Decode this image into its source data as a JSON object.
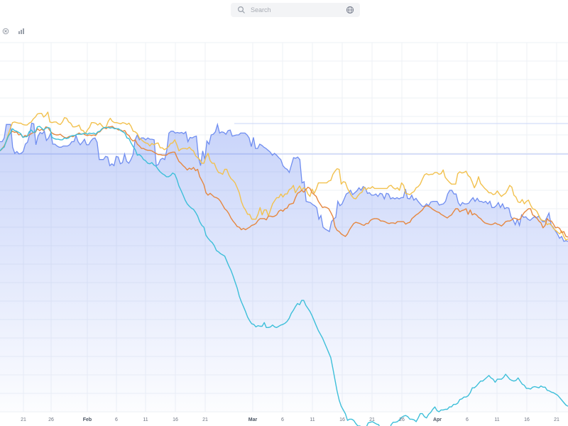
{
  "search": {
    "placeholder": "Search"
  },
  "toolbar": {
    "icons": [
      "close-circle-icon",
      "bar-chart-icon"
    ]
  },
  "colors": {
    "area_fill": "#6f8df0",
    "area_line": "#6f8df0",
    "yellow": "#f2c14e",
    "orange": "#e58740",
    "cyan": "#3dbfd9",
    "grid": "#eef1f6",
    "ref_line": "#b8c6f5"
  },
  "chart_data": {
    "type": "line",
    "x_ticks": [
      "21",
      "26",
      "Feb",
      "6",
      "11",
      "16",
      "21",
      "Mar",
      "6",
      "11",
      "16",
      "21",
      "26",
      "Apr",
      "6",
      "11",
      "16",
      "21"
    ],
    "month_ticks": [
      "Feb",
      "Mar",
      "Apr"
    ],
    "grid": true,
    "series": [
      {
        "name": "",
        "kind": "area",
        "values": [
          161,
          161,
          155,
          133,
          133,
          133,
          170,
          180,
          177,
          181,
          180,
          177,
          165,
          162,
          150,
          131,
          132,
          166,
          152,
          146,
          148,
          144,
          159,
          155,
          147,
          165,
          165,
          168,
          170,
          170,
          168,
          168,
          168,
          166,
          161,
          161,
          151,
          161,
          166,
          162,
          157,
          166,
          166,
          160,
          156,
          155,
          162,
          190,
          190,
          190,
          185,
          186,
          200,
          197,
          200,
          185,
          186,
          197,
          195,
          181,
          193,
          196,
          190,
          182,
          158,
          150,
          158,
          155,
          155,
          158,
          155,
          157,
          157,
          158,
          200,
          198,
          190,
          188,
          190,
          175,
          147,
          144,
          144,
          147,
          146,
          147,
          146,
          148,
          145,
          161,
          154,
          155,
          153,
          152,
          187,
          200,
          176,
          190,
          160,
          165,
          150,
          149,
          145,
          133,
          147,
          145,
          146,
          149,
          143,
          142,
          152,
          151,
          150,
          150,
          147,
          147,
          147,
          150,
          155,
          169,
          154,
          172,
          172,
          165,
          167,
          170,
          172,
          175,
          178,
          183,
          180,
          183,
          187,
          190,
          200,
          204,
          206,
          211,
          199,
          187,
          188,
          186,
          190,
          228,
          226,
          258,
          259,
          260,
          263,
          265,
          268,
          287,
          281,
          300,
          303,
          305,
          307,
          291,
          287,
          284,
          258,
          265,
          262,
          254,
          246,
          244,
          240,
          247,
          244,
          241,
          236,
          240,
          234,
          236,
          245,
          244,
          248,
          248,
          246,
          250,
          245,
          246,
          254,
          245,
          246,
          254,
          252,
          254,
          252,
          254,
          252,
          252,
          238,
          253,
          254,
          248,
          256,
          253,
          258,
          262,
          266,
          266,
          262,
          265,
          259,
          258,
          258,
          258,
          264,
          263,
          262,
          258,
          246,
          240,
          240,
          246,
          246,
          260,
          265,
          260,
          262,
          262,
          261,
          256,
          252,
          258,
          253,
          258,
          258,
          260,
          258,
          262,
          258,
          268,
          268,
          265,
          260,
          268,
          262,
          270,
          268,
          269,
          283,
          288,
          296,
          287,
          297,
          280,
          284,
          283,
          287,
          289,
          286,
          283,
          285,
          282,
          286,
          291,
          291,
          284,
          277,
          296,
          300,
          306,
          311,
          318,
          315,
          323,
          322,
          323
        ]
      },
      {
        "name": "",
        "kind": "line",
        "color": "yellow",
        "values": [
          176,
          172,
          168,
          160,
          149,
          139,
          130,
          129,
          130,
          131,
          131,
          133,
          134,
          134,
          131,
          129,
          124,
          121,
          116,
          115,
          115,
          121,
          118,
          113,
          129,
          130,
          129,
          129,
          132,
          133,
          129,
          122,
          123,
          129,
          131,
          137,
          137,
          136,
          134,
          142,
          143,
          148,
          142,
          138,
          130,
          130,
          131,
          134,
          131,
          135,
          139,
          137,
          128,
          123,
          128,
          130,
          130,
          131,
          132,
          130,
          131,
          133,
          131,
          136,
          144,
          145,
          148,
          155,
          158,
          161,
          163,
          164,
          168,
          164,
          166,
          164,
          163,
          171,
          171,
          174,
          172,
          169,
          164,
          163,
          158,
          166,
          176,
          173,
          172,
          172,
          173,
          170,
          174,
          176,
          184,
          187,
          190,
          196,
          196,
          186,
          180,
          192,
          196,
          196,
          205,
          211,
          212,
          214,
          206,
          206,
          215,
          221,
          224,
          228,
          236,
          244,
          258,
          267,
          272,
          279,
          279,
          287,
          287,
          287,
          279,
          268,
          280,
          272,
          272,
          282,
          272,
          262,
          257,
          252,
          252,
          246,
          251,
          246,
          246,
          239,
          237,
          232,
          244,
          238,
          233,
          240,
          236,
          238,
          246,
          250,
          238,
          245,
          238,
          228,
          228,
          228,
          228,
          228,
          225,
          224,
          214,
          209,
          205,
          206,
          230,
          226,
          227,
          237,
          243,
          249,
          253,
          254,
          249,
          245,
          243,
          235,
          239,
          236,
          237,
          234,
          237,
          237,
          237,
          237,
          237,
          237,
          237,
          233,
          232,
          236,
          238,
          236,
          240,
          228,
          232,
          245,
          246,
          247,
          244,
          242,
          236,
          234,
          230,
          222,
          215,
          213,
          215,
          214,
          214,
          211,
          211,
          214,
          213,
          207,
          219,
          223,
          227,
          230,
          230,
          230,
          213,
          210,
          212,
          211,
          209,
          216,
          219,
          227,
          236,
          229,
          218,
          229,
          233,
          237,
          240,
          244,
          244,
          247,
          246,
          241,
          246,
          250,
          247,
          245,
          239,
          232,
          235,
          248,
          251,
          259,
          260,
          255,
          262,
          258,
          256,
          264,
          270,
          271,
          274,
          281,
          288,
          289,
          290,
          296,
          294,
          297,
          302,
          305,
          308,
          311,
          306,
          315,
          321,
          319
        ]
      },
      {
        "name": "",
        "kind": "line",
        "color": "orange",
        "values": [
          176,
          173,
          168,
          161,
          152,
          147,
          144,
          146,
          145,
          150,
          149,
          154,
          151,
          152,
          150,
          148,
          146,
          146,
          140,
          143,
          141,
          143,
          137,
          138,
          143,
          147,
          149,
          150,
          150,
          149,
          152,
          154,
          155,
          153,
          152,
          153,
          151,
          149,
          147,
          149,
          148,
          150,
          151,
          150,
          151,
          150,
          151,
          146,
          145,
          141,
          138,
          140,
          137,
          137,
          136,
          139,
          140,
          142,
          142,
          144,
          143,
          149,
          151,
          157,
          160,
          158,
          165,
          168,
          172,
          172,
          174,
          175,
          175,
          176,
          178,
          180,
          182,
          182,
          183,
          183,
          183,
          180,
          179,
          178,
          178,
          186,
          193,
          196,
          200,
          203,
          207,
          204,
          206,
          203,
          208,
          206,
          218,
          224,
          231,
          244,
          248,
          245,
          248,
          251,
          252,
          254,
          258,
          264,
          270,
          273,
          278,
          285,
          290,
          294,
          299,
          300,
          304,
          302,
          304,
          302,
          300,
          297,
          296,
          294,
          289,
          286,
          286,
          286,
          288,
          282,
          282,
          283,
          282,
          280,
          274,
          272,
          274,
          270,
          269,
          263,
          262,
          261,
          252,
          245,
          243,
          240,
          243,
          239,
          235,
          237,
          244,
          247,
          250,
          258,
          263,
          268,
          267,
          268,
          270,
          276,
          283,
          299,
          305,
          307,
          311,
          313,
          315,
          311,
          304,
          299,
          294,
          292,
          293,
          294,
          296,
          297,
          294,
          294,
          289,
          287,
          286,
          286,
          287,
          290,
          290,
          291,
          293,
          294,
          293,
          293,
          294,
          291,
          291,
          291,
          291,
          295,
          293,
          292,
          286,
          283,
          280,
          278,
          275,
          272,
          267,
          265,
          266,
          268,
          271,
          273,
          275,
          276,
          279,
          281,
          283,
          285,
          282,
          280,
          275,
          270,
          270,
          275,
          273,
          272,
          270,
          279,
          272,
          280,
          278,
          280,
          284,
          286,
          290,
          293,
          294,
          295,
          296,
          295,
          293,
          295,
          296,
          298,
          295,
          291,
          290,
          290,
          288,
          285,
          286,
          288,
          287,
          281,
          276,
          273,
          270,
          270,
          280,
          282,
          285,
          290,
          293,
          301,
          297,
          286,
          290,
          290,
          295,
          301,
          300,
          302,
          309,
          307,
          315,
          316
        ]
      },
      {
        "name": "",
        "kind": "line",
        "color": "cyan",
        "values": [
          176,
          172,
          170,
          160,
          152,
          147,
          140,
          143,
          144,
          146,
          148,
          154,
          153,
          153,
          145,
          142,
          146,
          145,
          137,
          136,
          139,
          142,
          139,
          138,
          139,
          154,
          156,
          157,
          157,
          158,
          158,
          155,
          156,
          155,
          152,
          151,
          151,
          149,
          149,
          149,
          148,
          147,
          149,
          147,
          148,
          147,
          149,
          145,
          144,
          140,
          138,
          138,
          138,
          139,
          138,
          140,
          140,
          140,
          143,
          145,
          147,
          155,
          156,
          163,
          169,
          174,
          183,
          182,
          185,
          190,
          192,
          196,
          197,
          195,
          199,
          201,
          206,
          210,
          213,
          215,
          218,
          218,
          216,
          212,
          214,
          222,
          233,
          240,
          248,
          256,
          262,
          266,
          269,
          271,
          276,
          282,
          291,
          297,
          300,
          313,
          318,
          322,
          325,
          330,
          338,
          340,
          343,
          345,
          347,
          355,
          363,
          370,
          379,
          389,
          399,
          412,
          421,
          429,
          437,
          446,
          452,
          457,
          458,
          462,
          460,
          461,
          461,
          455,
          463,
          463,
          462,
          459,
          462,
          463,
          461,
          459,
          458,
          456,
          453,
          448,
          440,
          435,
          429,
          424,
          426,
          419,
          419,
          427,
          432,
          437,
          444,
          452,
          460,
          468,
          474,
          480,
          488,
          496,
          504,
          512,
          530,
          548,
          566,
          581,
          591,
          597,
          603,
          614,
          612,
          612,
          614,
          619,
          623,
          623,
          626,
          626,
          625,
          618,
          617,
          616,
          618,
          620,
          621,
          628,
          629,
          629,
          634,
          631,
          621,
          617,
          617,
          616,
          613,
          609,
          607,
          606,
          608,
          612,
          612,
          613,
          616,
          610,
          603,
          603,
          608,
          610,
          604,
          601,
          596,
          592,
          598,
          600,
          597,
          597,
          596,
          596,
          592,
          592,
          588,
          588,
          586,
          580,
          579,
          576,
          576,
          574,
          569,
          561,
          561,
          558,
          554,
          550,
          550,
          547,
          544,
          541,
          545,
          547,
          552,
          547,
          547,
          547,
          544,
          539,
          543,
          547,
          549,
          550,
          549,
          545,
          550,
          555,
          557,
          562,
          562,
          563,
          560,
          559,
          560,
          561,
          558,
          560,
          560,
          565,
          566,
          568,
          569,
          571,
          573,
          577,
          581,
          585,
          589,
          591
        ]
      }
    ]
  }
}
